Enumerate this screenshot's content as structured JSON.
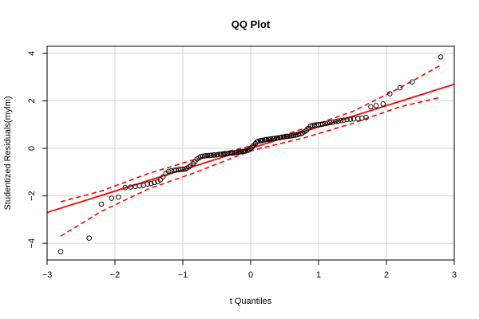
{
  "chart_data": {
    "type": "scatter",
    "title": "QQ Plot",
    "xlabel": "t Quantiles",
    "ylabel": "Studentized Residuals(mylm)",
    "xlim": [
      -3,
      3
    ],
    "ylim": [
      -4.7,
      4.3
    ],
    "x_ticks": [
      -3,
      -2,
      -1,
      0,
      1,
      2,
      3
    ],
    "y_ticks": [
      -4,
      -2,
      0,
      2,
      4
    ],
    "x_tick_labels": [
      "−3",
      "−2",
      "−1",
      "0",
      "1",
      "2",
      "3"
    ],
    "y_tick_labels": [
      "−4",
      "−2",
      "0",
      "2",
      "4"
    ],
    "grid": true,
    "colors": {
      "reference_line": "#ff0000",
      "envelope": "#ff0000",
      "points": "#000000",
      "grid": "#d3d3d3"
    },
    "reference_line": {
      "slope": 0.9,
      "intercept": 0.0
    },
    "envelope": {
      "x": [
        -2.8,
        -2.2,
        -1.5,
        -0.8,
        0.0,
        0.8,
        1.5,
        2.2,
        2.8
      ],
      "upper": [
        -2.25,
        -1.8,
        -1.05,
        -0.45,
        0.1,
        0.85,
        1.55,
        2.55,
        3.5
      ],
      "lower": [
        -3.7,
        -2.65,
        -1.7,
        -1.0,
        -0.1,
        0.45,
        1.05,
        1.75,
        2.15
      ]
    },
    "points": {
      "x": [
        -2.8,
        -2.38,
        -2.2,
        -2.05,
        -1.95,
        -1.85,
        -1.77,
        -1.7,
        -1.64,
        -1.58,
        -1.52,
        -1.47,
        -1.42,
        -1.37,
        -1.33,
        -1.29,
        -1.25,
        -1.21,
        -1.17,
        -1.13,
        -1.1,
        -1.06,
        -1.03,
        -1.0,
        -0.97,
        -0.94,
        -0.91,
        -0.88,
        -0.85,
        -0.82,
        -0.79,
        -0.76,
        -0.74,
        -0.71,
        -0.68,
        -0.66,
        -0.63,
        -0.6,
        -0.58,
        -0.55,
        -0.53,
        -0.5,
        -0.48,
        -0.45,
        -0.43,
        -0.4,
        -0.38,
        -0.35,
        -0.33,
        -0.3,
        -0.28,
        -0.26,
        -0.23,
        -0.21,
        -0.18,
        -0.16,
        -0.14,
        -0.11,
        -0.09,
        -0.07,
        -0.04,
        -0.02,
        0.0,
        0.02,
        0.04,
        0.07,
        0.09,
        0.11,
        0.14,
        0.16,
        0.18,
        0.21,
        0.23,
        0.26,
        0.28,
        0.3,
        0.33,
        0.35,
        0.38,
        0.4,
        0.43,
        0.45,
        0.48,
        0.5,
        0.53,
        0.55,
        0.58,
        0.6,
        0.63,
        0.66,
        0.68,
        0.71,
        0.74,
        0.76,
        0.79,
        0.82,
        0.85,
        0.88,
        0.91,
        0.94,
        0.97,
        1.0,
        1.03,
        1.06,
        1.1,
        1.13,
        1.17,
        1.21,
        1.25,
        1.29,
        1.33,
        1.37,
        1.42,
        1.47,
        1.52,
        1.58,
        1.64,
        1.7,
        1.77,
        1.85,
        1.95,
        2.05,
        2.2,
        2.38,
        2.8
      ],
      "y": [
        -4.35,
        -3.78,
        -2.35,
        -2.1,
        -2.05,
        -1.65,
        -1.63,
        -1.6,
        -1.58,
        -1.56,
        -1.5,
        -1.48,
        -1.44,
        -1.4,
        -1.33,
        -1.2,
        -1.05,
        -0.97,
        -0.95,
        -0.93,
        -0.91,
        -0.9,
        -0.89,
        -0.88,
        -0.87,
        -0.83,
        -0.78,
        -0.72,
        -0.64,
        -0.56,
        -0.45,
        -0.4,
        -0.35,
        -0.33,
        -0.32,
        -0.31,
        -0.3,
        -0.3,
        -0.29,
        -0.28,
        -0.28,
        -0.27,
        -0.26,
        -0.25,
        -0.24,
        -0.23,
        -0.22,
        -0.22,
        -0.21,
        -0.2,
        -0.2,
        -0.19,
        -0.18,
        -0.17,
        -0.16,
        -0.15,
        -0.14,
        -0.13,
        -0.12,
        -0.11,
        -0.08,
        -0.05,
        0.0,
        0.05,
        0.12,
        0.2,
        0.27,
        0.3,
        0.32,
        0.33,
        0.34,
        0.36,
        0.37,
        0.38,
        0.39,
        0.4,
        0.41,
        0.42,
        0.43,
        0.44,
        0.45,
        0.47,
        0.48,
        0.49,
        0.5,
        0.51,
        0.52,
        0.53,
        0.55,
        0.56,
        0.58,
        0.6,
        0.62,
        0.65,
        0.7,
        0.75,
        0.85,
        0.93,
        0.97,
        0.98,
        0.99,
        1.0,
        1.01,
        1.02,
        1.04,
        1.06,
        1.08,
        1.1,
        1.13,
        1.15,
        1.17,
        1.19,
        1.21,
        1.22,
        1.24,
        1.25,
        1.27,
        1.3,
        1.75,
        1.8,
        1.87,
        2.3,
        2.55,
        2.8,
        3.85
      ]
    }
  }
}
